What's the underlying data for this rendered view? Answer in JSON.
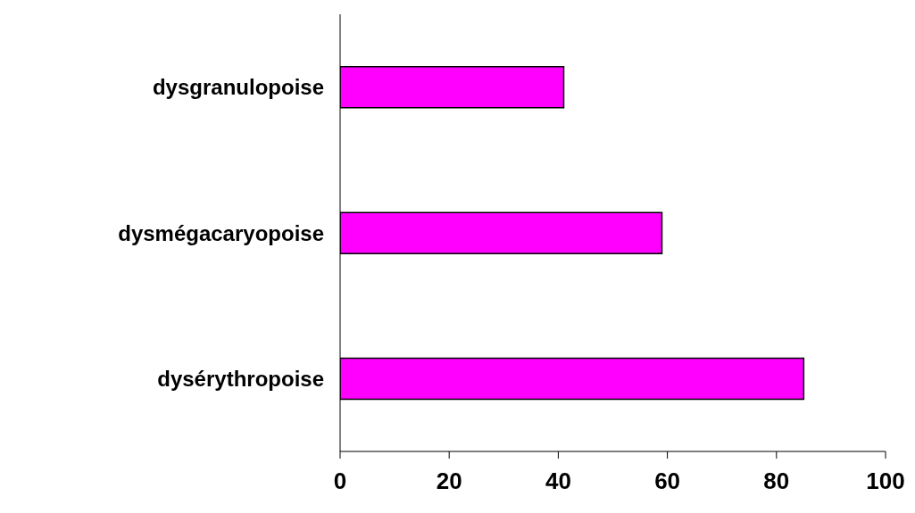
{
  "chart_data": {
    "type": "bar",
    "orientation": "horizontal",
    "categories": [
      "dysgranulopoise",
      "dysmégacaryopoise",
      "dysérythropoise"
    ],
    "values": [
      41,
      59,
      85
    ],
    "color": "#ff00ff",
    "xlim": [
      0,
      100
    ],
    "xticks": [
      0,
      20,
      40,
      60,
      80,
      100
    ]
  }
}
